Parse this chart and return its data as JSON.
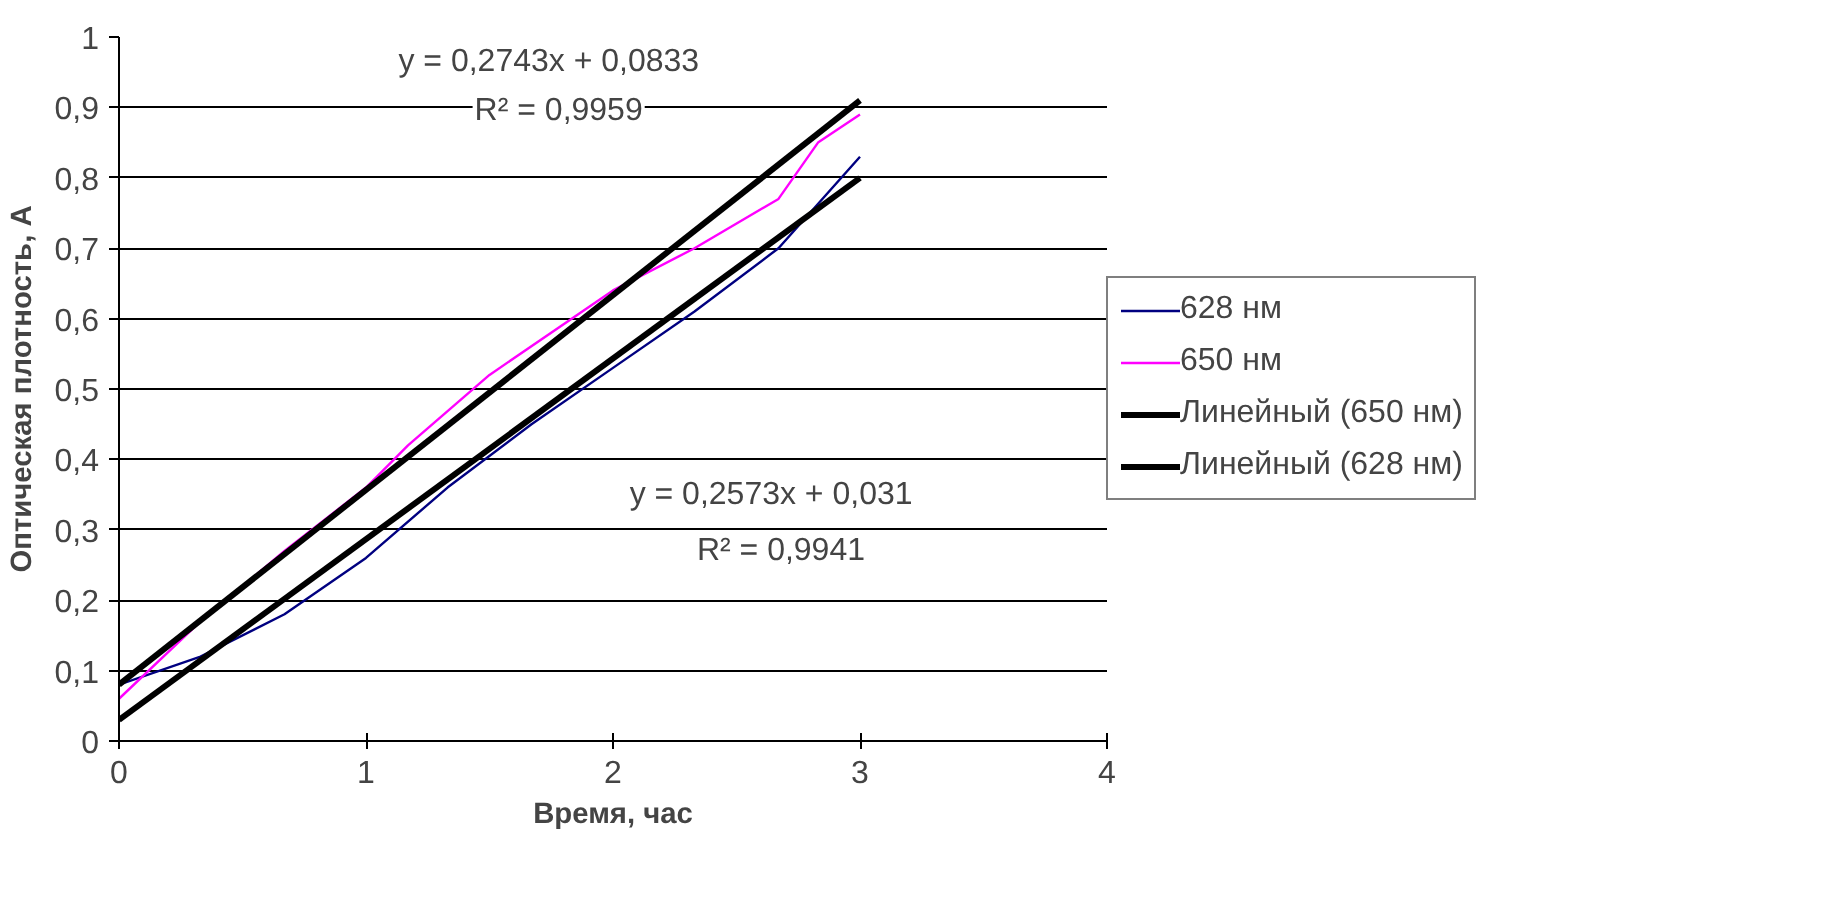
{
  "chart_data": {
    "type": "line",
    "xlabel": "Время, час",
    "ylabel": "Оптическая плотность, А",
    "xlim": [
      0,
      4
    ],
    "xticks": [
      0,
      1,
      2,
      3,
      4
    ],
    "ylim": [
      0,
      1
    ],
    "yticks": [
      0,
      {
        "value": 0.1,
        "label": "0,1"
      },
      {
        "value": 0.2,
        "label": "0,2"
      },
      {
        "value": 0.3,
        "label": "0,3"
      },
      {
        "value": 0.4,
        "label": "0,4"
      },
      {
        "value": 0.5,
        "label": "0,5"
      },
      {
        "value": 0.6,
        "label": "0,6"
      },
      {
        "value": 0.7,
        "label": "0,7"
      },
      {
        "value": 0.8,
        "label": "0,8"
      },
      {
        "value": 0.9,
        "label": "0,9"
      },
      1
    ],
    "grid": "y",
    "legend": "right",
    "marker": "none",
    "line_style": "solid",
    "series": [
      {
        "name": "628 нм",
        "color": "#000080",
        "x": [
          0,
          0.33,
          0.67,
          1,
          1.33,
          1.67,
          2,
          2.33,
          2.67,
          3
        ],
        "values": [
          0.08,
          0.12,
          0.18,
          0.26,
          0.36,
          0.45,
          0.53,
          0.61,
          0.7,
          0.83
        ]
      },
      {
        "name": "650 нм",
        "color": "#ff00ff",
        "x": [
          0,
          0.33,
          0.67,
          1,
          1.17,
          1.5,
          2,
          2.33,
          2.67,
          2.83,
          3
        ],
        "values": [
          0.06,
          0.17,
          0.27,
          0.36,
          0.42,
          0.52,
          0.64,
          0.7,
          0.77,
          0.85,
          0.89
        ]
      },
      {
        "name": "Линейный (650 нм)",
        "color": "#000000",
        "x": [
          0,
          3
        ],
        "values": [
          0.08,
          0.91
        ]
      },
      {
        "name": "Линейный (628 нм)",
        "color": "#000000",
        "x": [
          0,
          3
        ],
        "values": [
          0.03,
          0.8
        ]
      }
    ],
    "annotations": [
      "y = 0,2743x + 0,0833",
      "R² = 0,9959",
      "y = 0,2573x + 0,031",
      "R² = 0,9941"
    ]
  }
}
